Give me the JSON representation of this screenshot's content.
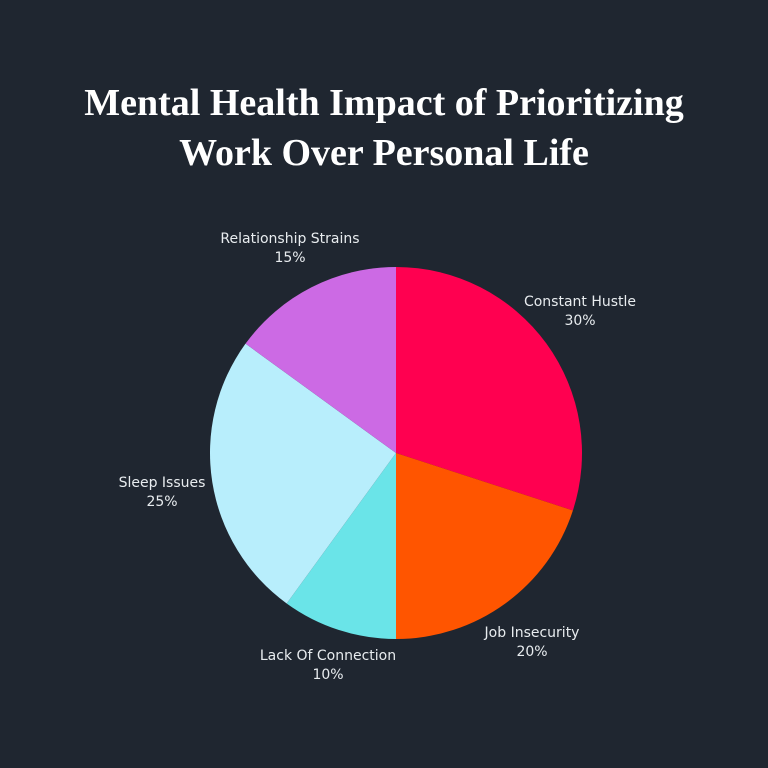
{
  "chart_data": {
    "type": "pie",
    "title_lines": [
      "Mental Health Impact of Prioritizing",
      "Work Over Personal Life"
    ],
    "start_angle": "12 o'clock",
    "direction": "clockwise",
    "legend": "none",
    "slices": [
      {
        "label": "Constant Hustle",
        "value": 30,
        "value_label": "30%",
        "color": "#ff0050"
      },
      {
        "label": "Job Insecurity",
        "value": 20,
        "value_label": "20%",
        "color": "#ff5500"
      },
      {
        "label": "Lack Of Connection",
        "value": 10,
        "value_label": "10%",
        "color": "#6ae4e8"
      },
      {
        "label": "Sleep Issues",
        "value": 25,
        "value_label": "25%",
        "color": "#b8eefc"
      },
      {
        "label": "Relationship Strains",
        "value": 15,
        "value_label": "15%",
        "color": "#cc6ae4"
      }
    ]
  },
  "colors": {
    "background": "#1f2630",
    "text": "#ffffff"
  }
}
